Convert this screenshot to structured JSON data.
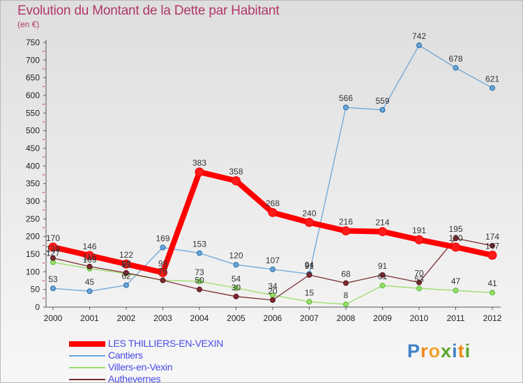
{
  "title": "Evolution du Montant de la Dette par Habitant",
  "subtitle": "(en €)",
  "logo": {
    "text": "Proxiti",
    "letters": [
      "P",
      "r",
      "o",
      "x",
      "i",
      "t",
      "i"
    ],
    "colors": [
      "#3f80c8",
      "#ee8a1c",
      "#f0a230",
      "#5ba62e",
      "#3f80c8",
      "#ee8a1c",
      "#5ba62e"
    ]
  },
  "chart_data": {
    "type": "line",
    "title": "Evolution du Montant de la Dette par Habitant",
    "subtitle": "(en €)",
    "x": [
      "2000",
      "2001",
      "2002",
      "2003",
      "2004",
      "2005",
      "2006",
      "2007",
      "2008",
      "2009",
      "2010",
      "2011",
      "2012"
    ],
    "ylim": [
      0,
      750
    ],
    "yticks": [
      0,
      50,
      100,
      150,
      200,
      250,
      300,
      350,
      400,
      450,
      500,
      550,
      600,
      650,
      700,
      750
    ],
    "grid": false,
    "legend_position": "bottom-left",
    "series": [
      {
        "name": "LES THILLIERS-EN-VEXIN",
        "color": "#ff0000",
        "values": [
          170,
          146,
          122,
          98,
          383,
          358,
          268,
          240,
          216,
          214,
          191,
          170,
          147
        ],
        "labels": [
          "170",
          "146",
          "122",
          "98",
          "383",
          "358",
          "268",
          "240",
          "216",
          "214",
          "191",
          "170",
          "147"
        ]
      },
      {
        "name": "Cantiers",
        "color": "#6ca5d6",
        "values": [
          53,
          45,
          62,
          169,
          153,
          120,
          107,
          94,
          566,
          559,
          742,
          678,
          621
        ],
        "labels": [
          "53",
          "45",
          "62",
          "169",
          "153",
          "120",
          "107",
          "94",
          "566",
          "559",
          "742",
          "678",
          "621"
        ]
      },
      {
        "name": "Villers-en-Vexin",
        "color": "#99dd66",
        "values": [
          127,
          109,
          95,
          76,
          73,
          54,
          34,
          15,
          8,
          61,
          53,
          47,
          41
        ],
        "labels": [
          "127",
          "109",
          "95",
          "76",
          "73",
          "54",
          "34",
          "15",
          "8",
          "61",
          "53",
          "47",
          "41"
        ]
      },
      {
        "name": "Authevernes",
        "color": "#7a2a30",
        "values": [
          139,
          115,
          97,
          76,
          50,
          30,
          20,
          91,
          68,
          91,
          70,
          195,
          174
        ],
        "labels": [
          "139",
          "115",
          "97",
          "76",
          "50",
          "30",
          "20",
          "91",
          "68",
          "91",
          "70",
          "195",
          "174"
        ]
      }
    ]
  }
}
